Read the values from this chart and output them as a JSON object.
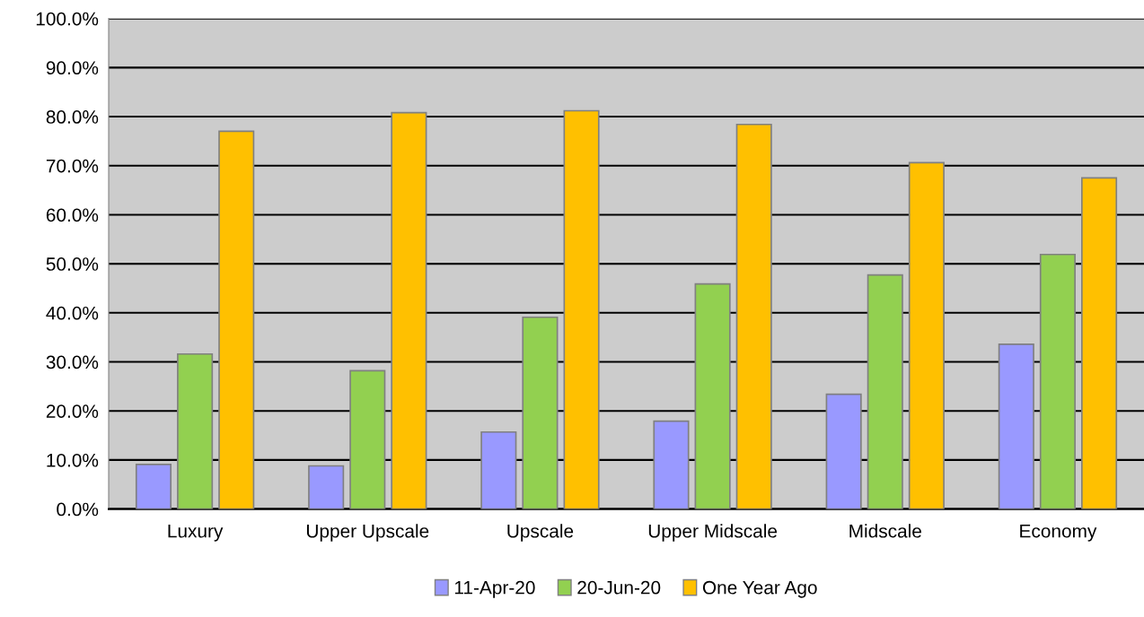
{
  "chart_data": {
    "type": "bar",
    "categories": [
      "Luxury",
      "Upper Upscale",
      "Upscale",
      "Upper Midscale",
      "Midscale",
      "Economy"
    ],
    "series": [
      {
        "name": "11-Apr-20",
        "color": "#9999ff",
        "values": [
          9.1,
          8.8,
          15.7,
          17.9,
          23.4,
          33.6
        ]
      },
      {
        "name": "20-Jun-20",
        "color": "#92d050",
        "values": [
          31.6,
          28.2,
          39.1,
          45.9,
          47.7,
          51.9
        ]
      },
      {
        "name": "One Year Ago",
        "color": "#ffc000",
        "values": [
          77.0,
          80.8,
          81.2,
          78.4,
          70.6,
          67.5
        ]
      }
    ],
    "ylim": [
      0,
      100
    ],
    "yticks": [
      {
        "value": 0,
        "label": "0.0%"
      },
      {
        "value": 10,
        "label": "10.0%"
      },
      {
        "value": 20,
        "label": "20.0%"
      },
      {
        "value": 30,
        "label": "30.0%"
      },
      {
        "value": 40,
        "label": "40.0%"
      },
      {
        "value": 50,
        "label": "50.0%"
      },
      {
        "value": 60,
        "label": "60.0%"
      },
      {
        "value": 70,
        "label": "70.0%"
      },
      {
        "value": 80,
        "label": "80.0%"
      },
      {
        "value": 90,
        "label": "90.0%"
      },
      {
        "value": 100,
        "label": "100.0%"
      }
    ],
    "grid": "y",
    "legend": "bottom"
  }
}
